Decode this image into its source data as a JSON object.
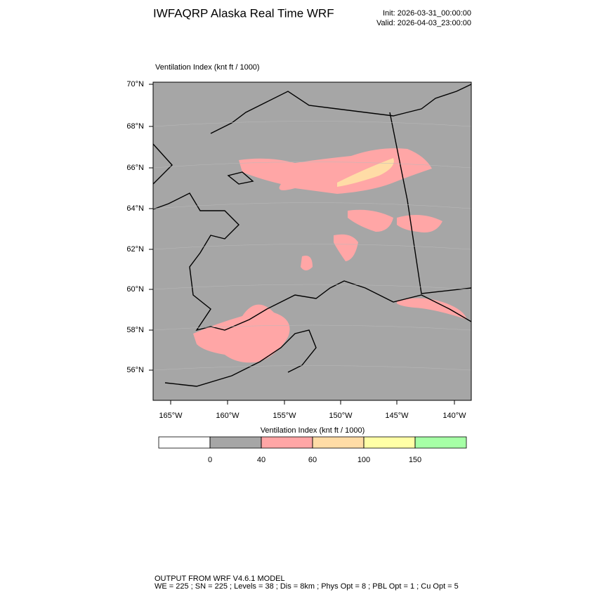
{
  "header": {
    "title": "IWFAQRP Alaska Real Time WRF",
    "init": "Init: 2026-03-31_00:00:00",
    "valid": "Valid: 2026-04-03_23:00:00"
  },
  "plot": {
    "label": "Ventilation Index   (knt ft / 1000)",
    "lat_labels": [
      "70°N",
      "68°N",
      "66°N",
      "64°N",
      "62°N",
      "60°N",
      "58°N",
      "56°N"
    ],
    "lon_labels": [
      "165°W",
      "160°W",
      "155°W",
      "150°W",
      "145°W",
      "140°W"
    ]
  },
  "colorbar": {
    "title": "Ventilation Index  (knt ft / 1000)",
    "levels": [
      0,
      40,
      60,
      100,
      150
    ],
    "colors": [
      "#ffffff",
      "#a6a6a6",
      "#ffa6a6",
      "#ffdca6",
      "#ffffa6",
      "#a6ffa6"
    ]
  },
  "footer": {
    "line1": "OUTPUT FROM WRF V4.6.1 MODEL",
    "line2": "WE = 225 ; SN = 225 ; Levels = 38 ; Dis = 8km ; Phys Opt = 8 ; PBL Opt = 1 ; Cu Opt = 5"
  }
}
